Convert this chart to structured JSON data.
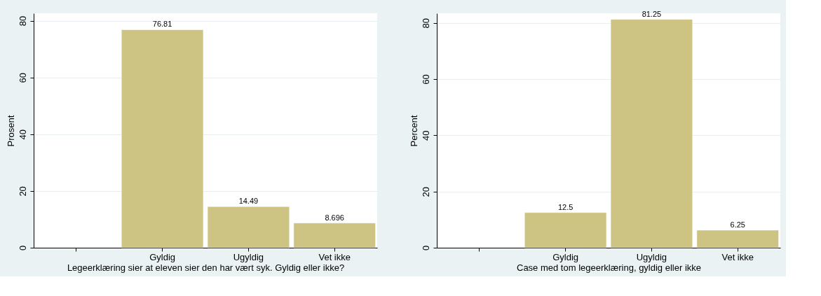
{
  "chart_data": [
    {
      "type": "bar",
      "categories": [
        null,
        "Gyldig",
        "Ugyldig",
        "Vet ikke"
      ],
      "values": [
        null,
        76.81,
        14.49,
        8.696
      ],
      "color": "#cdc382",
      "data_labels": true,
      "ylabel": "Prosent",
      "xlabel": "Legeerklæring sier at eleven sier den har vært syk. Gyldig eller ikke?",
      "ylim": [
        0,
        82.6
      ],
      "yticks": [
        0,
        20,
        40,
        60,
        80
      ],
      "grid": "y",
      "legend": false
    },
    {
      "type": "bar",
      "categories": [
        null,
        "Gyldig",
        "Ugyldig",
        "Vet ikke"
      ],
      "values": [
        null,
        12.5,
        81.25,
        6.25
      ],
      "color": "#cdc382",
      "data_labels": true,
      "ylabel": "Percent",
      "xlabel": "Case med tom legeerklæring, gyldig eller ikke",
      "ylim": [
        0,
        83.4
      ],
      "yticks": [
        0,
        20,
        40,
        60,
        80
      ],
      "grid": "y",
      "legend": false
    }
  ]
}
